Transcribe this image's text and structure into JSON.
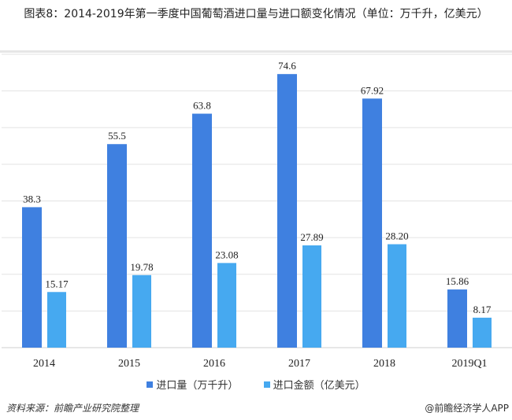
{
  "title": "图表8：2014-2019年第一季度中国葡萄酒进口量与进口额变化情况（单位：万千升，亿美元）",
  "source": "资料来源：前瞻产业研究院整理",
  "credit": "@前瞻经济学人APP",
  "chart_data": {
    "type": "bar",
    "categories": [
      "2014",
      "2015",
      "2016",
      "2017",
      "2018",
      "2019Q1"
    ],
    "series": [
      {
        "name": "进口量（万千升）",
        "color": "#3f80e0",
        "values": [
          38.3,
          55.5,
          63.8,
          74.6,
          67.92,
          15.86
        ],
        "labels": [
          "38.3",
          "55.5",
          "63.8",
          "74.6",
          "67.92",
          "15.86"
        ]
      },
      {
        "name": "进口金额（亿美元）",
        "color": "#46a9f0",
        "values": [
          15.17,
          19.78,
          23.08,
          27.89,
          28.2,
          8.17
        ],
        "labels": [
          "15.17",
          "19.78",
          "23.08",
          "27.89",
          "28.20",
          "8.17"
        ]
      }
    ],
    "ylim": [
      0,
      80
    ],
    "grid": true,
    "legend": "bottom"
  }
}
